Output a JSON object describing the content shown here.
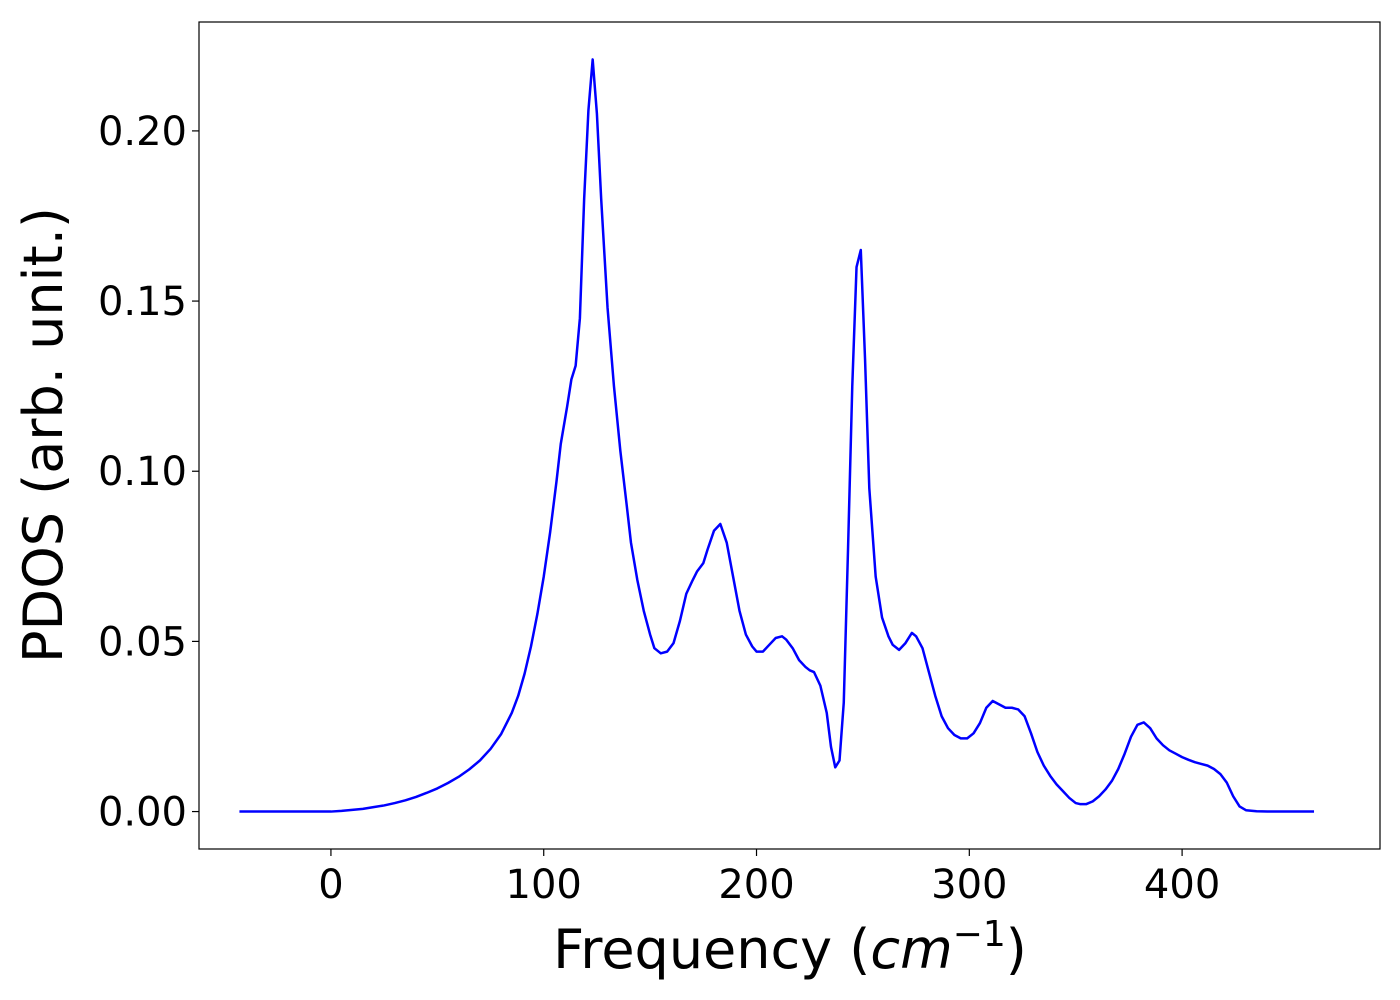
{
  "chart_data": {
    "type": "line",
    "title": "",
    "xlabel": "Frequency",
    "xlabel_unit_base": "cm",
    "xlabel_unit_exp": "−1",
    "ylabel": "PDOS (arb. unit.)",
    "xlim": [
      -62,
      493
    ],
    "ylim": [
      -0.011,
      0.232
    ],
    "xticks": [
      0,
      100,
      200,
      300,
      400
    ],
    "xtick_labels": [
      "0",
      "100",
      "200",
      "300",
      "400"
    ],
    "yticks": [
      0.0,
      0.05,
      0.1,
      0.15,
      0.2
    ],
    "ytick_labels": [
      "0.00",
      "0.05",
      "0.10",
      "0.15",
      "0.20"
    ],
    "grid": false,
    "series": [
      {
        "color": "#0000ff",
        "x": [
          -43,
          -30,
          -20,
          -10,
          0,
          5,
          10,
          15,
          20,
          25,
          30,
          35,
          40,
          45,
          50,
          55,
          60,
          65,
          70,
          75,
          80,
          85,
          88,
          91,
          94,
          97,
          100,
          103,
          106,
          108,
          111,
          113,
          115,
          117,
          119,
          121,
          123,
          125,
          127,
          130,
          133,
          136,
          139,
          141,
          144,
          147,
          150,
          152,
          155,
          158,
          161,
          164,
          167,
          170,
          172,
          175,
          177,
          180,
          183,
          186,
          189,
          192,
          195,
          198,
          200,
          203,
          206,
          209,
          212,
          214,
          217,
          220,
          223,
          225,
          227,
          230,
          233,
          235,
          237,
          239,
          241,
          243,
          245,
          247,
          249,
          251,
          253,
          256,
          259,
          262,
          264,
          267,
          270,
          273,
          275,
          278,
          281,
          284,
          287,
          290,
          293,
          296,
          299,
          302,
          305,
          308,
          311,
          314,
          317,
          320,
          323,
          326,
          329,
          332,
          335,
          338,
          341,
          344,
          347,
          350,
          352,
          355,
          358,
          361,
          364,
          367,
          370,
          373,
          376,
          379,
          382,
          385,
          388,
          391,
          394,
          397,
          400,
          403,
          406,
          409,
          412,
          415,
          418,
          421,
          424,
          427,
          430,
          435,
          440,
          450,
          462
        ],
        "y": [
          0.0,
          0.0,
          0.0,
          0.0,
          0.0,
          0.0002,
          0.0005,
          0.0008,
          0.0013,
          0.0018,
          0.0025,
          0.0033,
          0.0043,
          0.0055,
          0.0068,
          0.0084,
          0.0102,
          0.0124,
          0.015,
          0.0184,
          0.0228,
          0.029,
          0.034,
          0.0405,
          0.0485,
          0.058,
          0.069,
          0.082,
          0.097,
          0.108,
          0.119,
          0.127,
          0.131,
          0.145,
          0.18,
          0.206,
          0.221,
          0.205,
          0.18,
          0.148,
          0.125,
          0.106,
          0.09,
          0.079,
          0.068,
          0.059,
          0.052,
          0.048,
          0.0465,
          0.047,
          0.0495,
          0.056,
          0.064,
          0.068,
          0.0705,
          0.073,
          0.077,
          0.0825,
          0.0845,
          0.079,
          0.069,
          0.059,
          0.052,
          0.0485,
          0.047,
          0.047,
          0.049,
          0.051,
          0.0515,
          0.0505,
          0.048,
          0.0445,
          0.0425,
          0.0415,
          0.041,
          0.037,
          0.029,
          0.019,
          0.013,
          0.015,
          0.032,
          0.077,
          0.125,
          0.16,
          0.165,
          0.133,
          0.095,
          0.069,
          0.057,
          0.0515,
          0.049,
          0.0475,
          0.0495,
          0.0525,
          0.0515,
          0.048,
          0.041,
          0.034,
          0.028,
          0.0245,
          0.0225,
          0.0215,
          0.0215,
          0.023,
          0.026,
          0.0305,
          0.0325,
          0.0315,
          0.0305,
          0.0305,
          0.03,
          0.028,
          0.023,
          0.0175,
          0.0135,
          0.0105,
          0.008,
          0.006,
          0.004,
          0.0025,
          0.0022,
          0.0022,
          0.003,
          0.0045,
          0.0065,
          0.009,
          0.0125,
          0.017,
          0.022,
          0.0255,
          0.0262,
          0.0245,
          0.0215,
          0.0195,
          0.018,
          0.017,
          0.016,
          0.0152,
          0.0145,
          0.014,
          0.0135,
          0.0125,
          0.011,
          0.0085,
          0.0045,
          0.0015,
          0.0004,
          0.0001,
          0.0,
          0.0,
          0.0
        ]
      }
    ]
  }
}
